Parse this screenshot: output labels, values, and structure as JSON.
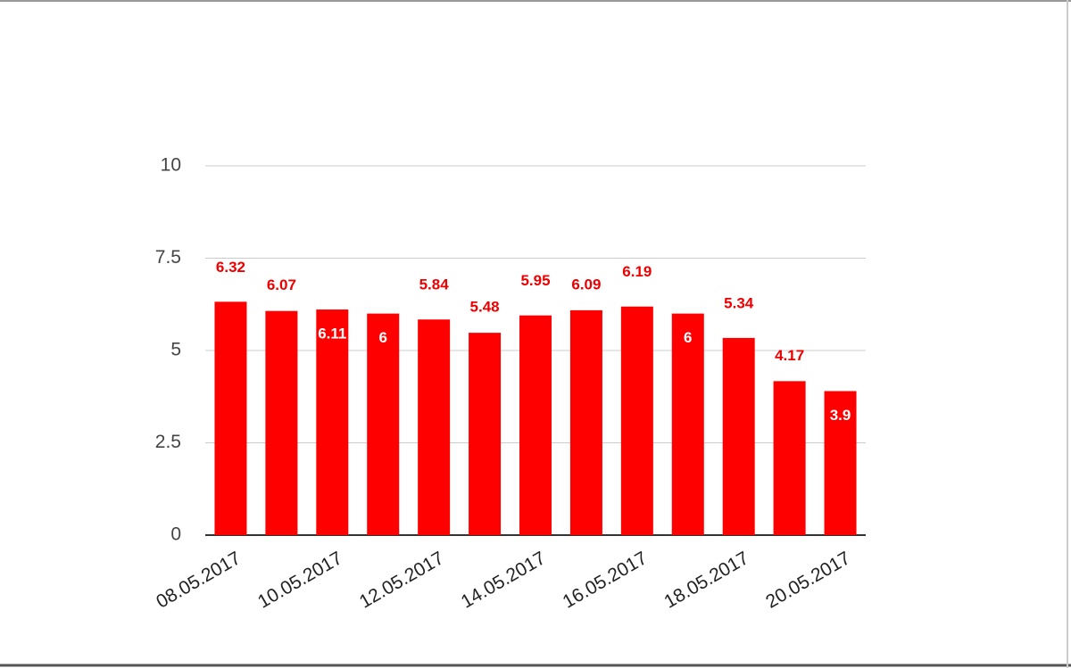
{
  "chart_data": {
    "type": "bar",
    "categories": [
      "08.05.2017",
      null,
      "10.05.2017",
      null,
      "12.05.2017",
      null,
      "14.05.2017",
      null,
      "16.05.2017",
      null,
      "18.05.2017",
      null,
      "20.05.2017"
    ],
    "values": [
      6.32,
      6.07,
      6.11,
      6,
      5.84,
      5.48,
      5.95,
      6.09,
      6.19,
      6,
      5.34,
      4.17,
      3.9
    ],
    "color": "#ff0000",
    "ylim": [
      0,
      10
    ],
    "yticks": [
      0,
      2.5,
      5,
      7.5,
      10
    ],
    "grid": true
  }
}
